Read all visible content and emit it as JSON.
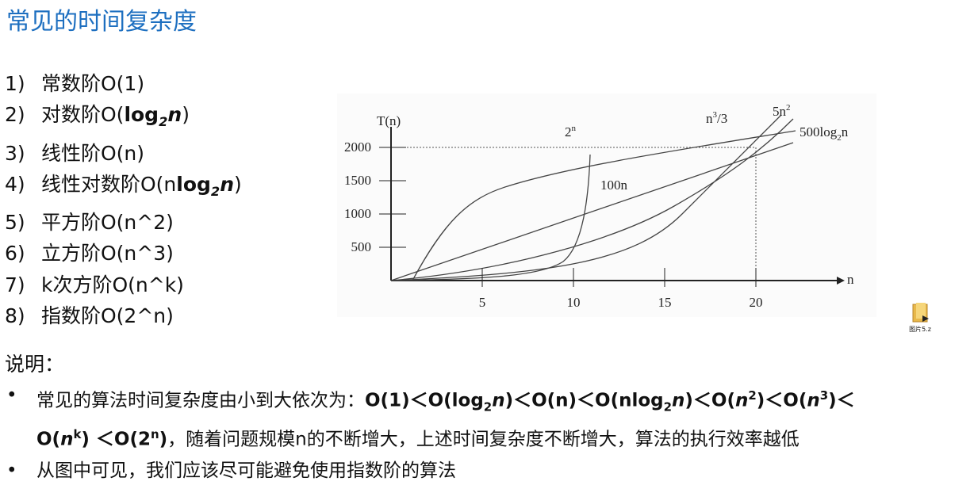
{
  "title": "常见的时间复杂度",
  "list": [
    {
      "number": "1)",
      "parts": [
        "常数阶O(1)"
      ]
    },
    {
      "number": "2)",
      "parts": [
        "对数阶O(",
        "log",
        "2",
        "n",
        ")"
      ]
    },
    {
      "number": "3)",
      "parts": [
        "线性阶O(n)"
      ]
    },
    {
      "number": "4)",
      "parts": [
        "线性对数阶O(n",
        "log",
        "2",
        "n",
        ")"
      ]
    },
    {
      "number": "5)",
      "parts": [
        "平方阶O(n^2)"
      ]
    },
    {
      "number": "6)",
      "parts": [
        "立方阶O(n^3)"
      ]
    },
    {
      "number": "7)",
      "parts": [
        "k次方阶O(n^k)"
      ]
    },
    {
      "number": "8)",
      "parts": [
        "指数阶O(2^n)"
      ]
    }
  ],
  "figure": {
    "y_label": "T(n)",
    "x_label": "n",
    "yticks": [
      500,
      1000,
      1500,
      2000
    ],
    "xticks": [
      5,
      10,
      15,
      20
    ],
    "curve_labels": {
      "exp": [
        "2",
        "n"
      ],
      "cube": [
        "n",
        "3",
        "/3"
      ],
      "square": [
        "5n",
        "2"
      ],
      "log": [
        "500log",
        "2",
        "n"
      ],
      "linear": [
        "100n"
      ]
    }
  },
  "icon_label": "图片5.z",
  "notes": {
    "heading": "说明：",
    "bullets": [
      [
        "常见的算法时间复杂度由小到大依次为：",
        "O(1)＜O(log",
        "2",
        "n",
        ")＜O(n)＜O(nlog",
        "2",
        "n",
        ")＜O(",
        "n",
        "2",
        ")＜",
        "O(",
        "n",
        "3",
        ")＜ O(",
        "n",
        "k",
        ") ＜O(2",
        "n",
        ")",
        "，随着问题规模n的不断增大，上述时间复杂度不断增大，算法的执行效率越低"
      ],
      [
        "从图中可见，我们应该尽可能避免使用指数阶的算法"
      ]
    ]
  }
}
